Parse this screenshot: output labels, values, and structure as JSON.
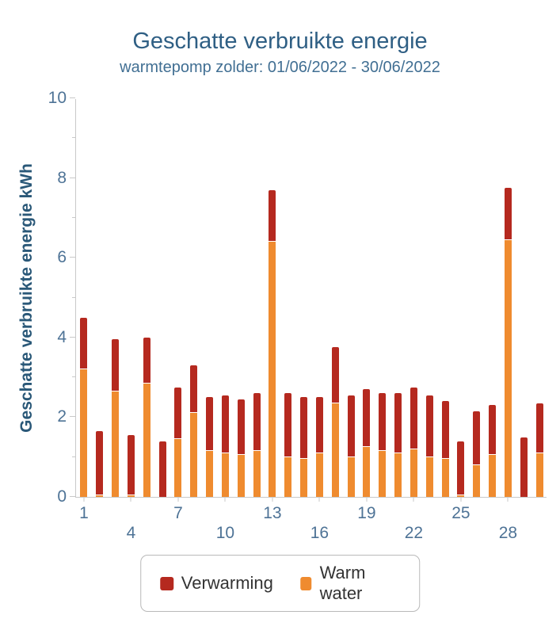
{
  "header": {
    "title": "Geschatte verbruikte energie",
    "subtitle": "warmtepomp zolder: 01/06/2022 - 30/06/2022"
  },
  "y_axis": {
    "title": "Geschatte verbruikte energie kWh",
    "min": 0,
    "max": 10,
    "major_tick_interval": 2,
    "tick_labels": [
      "0",
      "2",
      "4",
      "6",
      "8",
      "10"
    ]
  },
  "x_axis": {
    "label_rows": [
      [
        1,
        7,
        13,
        19,
        25
      ],
      [
        4,
        10,
        16,
        22,
        28
      ]
    ]
  },
  "legend": {
    "items": [
      {
        "label": "Verwarming",
        "color": "#b5291f"
      },
      {
        "label": "Warm water",
        "color": "#ef8b2f"
      }
    ]
  },
  "colors": {
    "title": "#2f5f84",
    "subtitle": "#416f93",
    "ytitle": "#2a5878",
    "axis_text": "#4e7396",
    "axis_line": "#c9c9c9",
    "verwarming": "#b5291f",
    "warm_water": "#ef8b2f"
  },
  "chart_data": {
    "type": "bar",
    "stacked": true,
    "title": "Geschatte verbruikte energie",
    "subtitle": "warmtepomp zolder: 01/06/2022 - 30/06/2022",
    "xlabel": "",
    "ylabel": "Geschatte verbruikte energie kWh",
    "ylim": [
      0,
      10
    ],
    "grid": false,
    "legend_position": "bottom",
    "categories": [
      1,
      2,
      3,
      4,
      5,
      6,
      7,
      8,
      9,
      10,
      11,
      12,
      13,
      14,
      15,
      16,
      17,
      18,
      19,
      20,
      21,
      22,
      23,
      24,
      25,
      26,
      27,
      28,
      29,
      30
    ],
    "series": [
      {
        "name": "Warm water",
        "color": "#ef8b2f",
        "stack_order": "bottom",
        "values": [
          3.2,
          0.05,
          2.65,
          0.05,
          2.85,
          0,
          1.45,
          2.1,
          1.15,
          1.1,
          1.05,
          1.15,
          6.4,
          1.0,
          0.95,
          1.1,
          2.35,
          1.0,
          1.25,
          1.15,
          1.1,
          1.2,
          1.0,
          0.95,
          0.05,
          0.8,
          1.05,
          6.45,
          0,
          1.1
        ]
      },
      {
        "name": "Verwarming",
        "color": "#b5291f",
        "stack_order": "top",
        "values": [
          1.3,
          1.6,
          1.3,
          1.5,
          1.15,
          1.4,
          1.3,
          1.2,
          1.35,
          1.45,
          1.4,
          1.45,
          1.3,
          1.6,
          1.55,
          1.4,
          1.4,
          1.55,
          1.45,
          1.45,
          1.5,
          1.55,
          1.55,
          1.45,
          1.35,
          1.35,
          1.25,
          1.3,
          1.5,
          1.25
        ]
      }
    ]
  }
}
